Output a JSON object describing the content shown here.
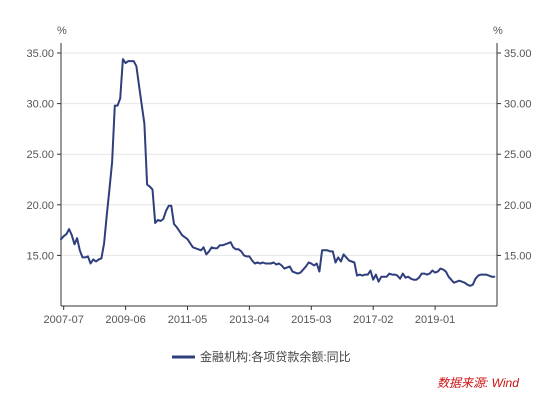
{
  "chart_data": {
    "type": "line",
    "unit_left": "%",
    "unit_right": "%",
    "ylim": [
      10,
      35
    ],
    "y_ticks": [
      "35.00",
      "30.00",
      "25.00",
      "20.00",
      "15.00"
    ],
    "y_ticks_right": [
      "35.00",
      "30.00",
      "25.00",
      "20.00",
      "15.00"
    ],
    "x_tick_labels": [
      "2007-07",
      "2009-06",
      "2011-05",
      "2013-04",
      "2015-03",
      "2017-02",
      "2019-01"
    ],
    "x_range": [
      "2007-06",
      "2020-12"
    ],
    "grid": true,
    "legend_position": "bottom-center",
    "colors": {
      "series": "#2e3f7c",
      "source": "#cc1111",
      "grid": "#e6e6e6",
      "axis": "#333333"
    },
    "series": [
      {
        "name": "金融机构:各项贷款余额:同比",
        "x": [
          "2007-06",
          "2007-07",
          "2007-08",
          "2007-09",
          "2007-10",
          "2007-11",
          "2007-12",
          "2008-01",
          "2008-02",
          "2008-03",
          "2008-04",
          "2008-05",
          "2008-06",
          "2008-07",
          "2008-08",
          "2008-09",
          "2008-10",
          "2008-11",
          "2008-12",
          "2009-01",
          "2009-02",
          "2009-03",
          "2009-04",
          "2009-05",
          "2009-06",
          "2009-07",
          "2009-08",
          "2009-09",
          "2009-10",
          "2009-11",
          "2009-12",
          "2010-01",
          "2010-02",
          "2010-03",
          "2010-04",
          "2010-05",
          "2010-06",
          "2010-07",
          "2010-08",
          "2010-09",
          "2010-10",
          "2010-11",
          "2010-12",
          "2011-01",
          "2011-02",
          "2011-03",
          "2011-04",
          "2011-05",
          "2011-06",
          "2011-07",
          "2011-08",
          "2011-09",
          "2011-10",
          "2011-11",
          "2011-12",
          "2012-01",
          "2012-02",
          "2012-03",
          "2012-04",
          "2012-05",
          "2012-06",
          "2012-07",
          "2012-08",
          "2012-09",
          "2012-10",
          "2012-11",
          "2012-12",
          "2013-01",
          "2013-02",
          "2013-03",
          "2013-04",
          "2013-05",
          "2013-06",
          "2013-07",
          "2013-08",
          "2013-09",
          "2013-10",
          "2013-11",
          "2013-12",
          "2014-01",
          "2014-02",
          "2014-03",
          "2014-04",
          "2014-05",
          "2014-06",
          "2014-07",
          "2014-08",
          "2014-09",
          "2014-10",
          "2014-11",
          "2014-12",
          "2015-01",
          "2015-02",
          "2015-03",
          "2015-04",
          "2015-05",
          "2015-06",
          "2015-07",
          "2015-08",
          "2015-09",
          "2015-10",
          "2015-11",
          "2015-12",
          "2016-01",
          "2016-02",
          "2016-03",
          "2016-04",
          "2016-05",
          "2016-06",
          "2016-07",
          "2016-08",
          "2016-09",
          "2016-10",
          "2016-11",
          "2016-12",
          "2017-01",
          "2017-02",
          "2017-03",
          "2017-04",
          "2017-05",
          "2017-06",
          "2017-07",
          "2017-08",
          "2017-09",
          "2017-10",
          "2017-11",
          "2017-12",
          "2018-01",
          "2018-02",
          "2018-03",
          "2018-04",
          "2018-05",
          "2018-06",
          "2018-07",
          "2018-08",
          "2018-09",
          "2018-10",
          "2018-11",
          "2018-12",
          "2019-01",
          "2019-02",
          "2019-03",
          "2019-04",
          "2019-05",
          "2019-06",
          "2019-07",
          "2019-08",
          "2019-09",
          "2019-10",
          "2019-11",
          "2019-12",
          "2020-01",
          "2020-02",
          "2020-03",
          "2020-04",
          "2020-05",
          "2020-06",
          "2020-07",
          "2020-08",
          "2020-09",
          "2020-10",
          "2020-11"
        ],
        "values": [
          16.6,
          16.9,
          17.1,
          17.6,
          17.0,
          16.1,
          16.7,
          15.5,
          14.8,
          14.8,
          14.9,
          14.2,
          14.6,
          14.4,
          14.6,
          14.7,
          16.2,
          19.0,
          21.5,
          24.2,
          29.8,
          29.8,
          30.5,
          34.4,
          34.0,
          34.2,
          34.2,
          34.2,
          33.7,
          31.8,
          29.9,
          28.0,
          22.0,
          21.8,
          21.5,
          18.2,
          18.5,
          18.4,
          18.6,
          19.4,
          19.9,
          19.9,
          18.1,
          17.8,
          17.4,
          17.0,
          16.8,
          16.6,
          16.2,
          15.8,
          15.7,
          15.6,
          15.5,
          15.8,
          15.1,
          15.4,
          15.8,
          15.7,
          15.7,
          16.0,
          16.0,
          16.1,
          16.2,
          16.3,
          15.8,
          15.6,
          15.6,
          15.4,
          15.0,
          14.9,
          14.9,
          14.5,
          14.2,
          14.3,
          14.2,
          14.3,
          14.2,
          14.2,
          14.2,
          14.3,
          14.1,
          14.2,
          14.0,
          13.7,
          13.8,
          13.9,
          13.4,
          13.3,
          13.2,
          13.3,
          13.6,
          13.9,
          14.3,
          14.2,
          14.0,
          14.2,
          13.4,
          15.5,
          15.5,
          15.5,
          15.4,
          15.4,
          14.3,
          14.8,
          14.4,
          15.1,
          14.8,
          14.5,
          14.4,
          14.3,
          13.0,
          13.1,
          13.0,
          13.1,
          13.1,
          13.5,
          12.6,
          13.1,
          12.4,
          12.9,
          12.9,
          12.9,
          13.2,
          13.1,
          13.1,
          13.0,
          12.7,
          13.2,
          12.8,
          12.9,
          12.7,
          12.6,
          12.6,
          12.8,
          13.2,
          13.2,
          13.1,
          13.2,
          13.5,
          13.3,
          13.4,
          13.7,
          13.6,
          13.4,
          12.9,
          12.6,
          12.3,
          12.4,
          12.5,
          12.4,
          12.3,
          12.1,
          12.0,
          12.1,
          12.7,
          13.0,
          13.1,
          13.1,
          13.1,
          13.0,
          12.9,
          12.9
        ]
      }
    ]
  },
  "legend": {
    "label": "金融机构:各项贷款余额:同比"
  },
  "source": {
    "text": "数据来源: Wind"
  }
}
